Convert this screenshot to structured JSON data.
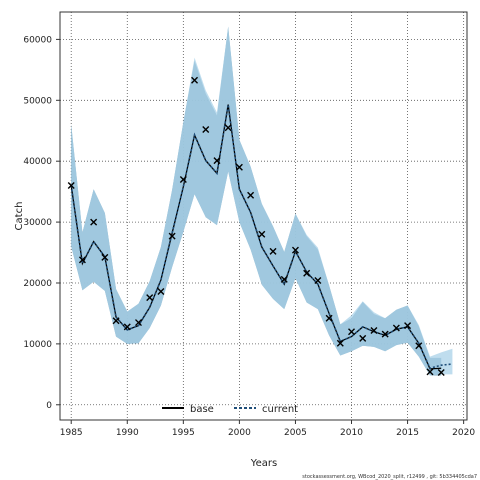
{
  "chart_data": {
    "type": "line",
    "xlabel": "Years",
    "ylabel": "Catch",
    "xlim": [
      1984,
      2020.3
    ],
    "ylim": [
      -2500,
      64500
    ],
    "xticks": [
      1985,
      1990,
      1995,
      2000,
      2005,
      2010,
      2015,
      2020
    ],
    "yticks": [
      0,
      10000,
      20000,
      30000,
      40000,
      50000,
      60000
    ],
    "grid": true,
    "legend_position": "bottom-center",
    "legend": [
      "base",
      "current"
    ],
    "footer": "stockassessment.org, WBcod_2020_split, r12499 , git: 5b334405cda7",
    "observed": {
      "x": [
        1985,
        1986,
        1987,
        1988,
        1989,
        1990,
        1991,
        1992,
        1993,
        1994,
        1995,
        1996,
        1997,
        1998,
        1999,
        2000,
        2001,
        2002,
        2003,
        2004,
        2005,
        2006,
        2007,
        2008,
        2009,
        2010,
        2011,
        2012,
        2013,
        2014,
        2015,
        2016,
        2017,
        2018
      ],
      "y": [
        36000,
        23800,
        30000,
        24200,
        13800,
        12800,
        13500,
        17600,
        18600,
        27700,
        37000,
        53300,
        45200,
        40100,
        45500,
        39000,
        34400,
        28000,
        25200,
        20600,
        25400,
        21600,
        20400,
        14200,
        10100,
        12000,
        10900,
        12200,
        11600,
        12600,
        13000,
        9700,
        5400,
        5300
      ]
    },
    "series": [
      {
        "name": "base",
        "color": "#6b8fa8",
        "x": [
          1985,
          1986,
          1987,
          1988,
          1989,
          1990,
          1991,
          1992,
          1993,
          1994,
          1995,
          1996,
          1997,
          1998,
          1999,
          2000,
          2001,
          2002,
          2003,
          2004,
          2005,
          2006,
          2007,
          2008,
          2009,
          2010,
          2011,
          2012,
          2013,
          2014,
          2015,
          2016,
          2017,
          2018
        ],
        "y": [
          36000,
          23200,
          26800,
          24300,
          14400,
          12300,
          13000,
          16000,
          20500,
          28200,
          35800,
          44300,
          40100,
          38000,
          49300,
          35400,
          31600,
          25900,
          22800,
          19800,
          25200,
          21800,
          19800,
          15000,
          10400,
          11200,
          12800,
          12000,
          11400,
          12400,
          12800,
          10100,
          5900,
          6000
        ],
        "lower": [
          26000,
          18800,
          20200,
          18700,
          11200,
          10000,
          10100,
          12600,
          16300,
          22600,
          28400,
          34600,
          30800,
          29500,
          38300,
          30000,
          25500,
          19700,
          17400,
          15700,
          20800,
          16800,
          15700,
          11400,
          8100,
          8800,
          9700,
          9500,
          8800,
          9800,
          10200,
          7900,
          4800,
          4800
        ],
        "upper": [
          46000,
          28300,
          35400,
          31500,
          19000,
          15300,
          16600,
          20300,
          25900,
          35300,
          46400,
          56500,
          51100,
          47500,
          62100,
          43500,
          39100,
          33000,
          29300,
          25100,
          31400,
          27700,
          25500,
          19600,
          13200,
          14200,
          16900,
          14900,
          14200,
          15600,
          16300,
          12900,
          7700,
          7700
        ]
      },
      {
        "name": "current",
        "color": "#1f4e79",
        "x": [
          1985,
          1986,
          1987,
          1988,
          1989,
          1990,
          1991,
          1992,
          1993,
          1994,
          1995,
          1996,
          1997,
          1998,
          1999,
          2000,
          2001,
          2002,
          2003,
          2004,
          2005,
          2006,
          2007,
          2008,
          2009,
          2010,
          2011,
          2012,
          2013,
          2014,
          2015,
          2016,
          2017,
          2018,
          2019
        ],
        "y": [
          36000,
          23200,
          26800,
          24300,
          14400,
          12300,
          13000,
          16000,
          20500,
          28200,
          35800,
          44300,
          40100,
          38000,
          49300,
          35400,
          31600,
          25900,
          22800,
          19800,
          25200,
          21800,
          19800,
          15000,
          10400,
          11200,
          12800,
          12000,
          11400,
          12400,
          12800,
          10100,
          6000,
          6500,
          6700
        ],
        "lower": [
          26000,
          18800,
          20200,
          18700,
          11200,
          10000,
          10100,
          12600,
          16300,
          22600,
          28400,
          34600,
          30800,
          29500,
          38300,
          30000,
          25500,
          19700,
          17400,
          15700,
          20800,
          16800,
          15700,
          11400,
          8100,
          8800,
          9700,
          9500,
          8800,
          9800,
          10200,
          7900,
          4800,
          5000,
          5000
        ],
        "upper": [
          46000,
          28300,
          35400,
          31500,
          19000,
          15300,
          16600,
          20300,
          25900,
          35300,
          46400,
          57000,
          51600,
          48000,
          62100,
          43500,
          39100,
          33000,
          29300,
          25100,
          31400,
          27900,
          25800,
          19600,
          13200,
          14700,
          17000,
          15200,
          14200,
          15600,
          16300,
          13100,
          7900,
          8600,
          9200
        ]
      }
    ]
  }
}
